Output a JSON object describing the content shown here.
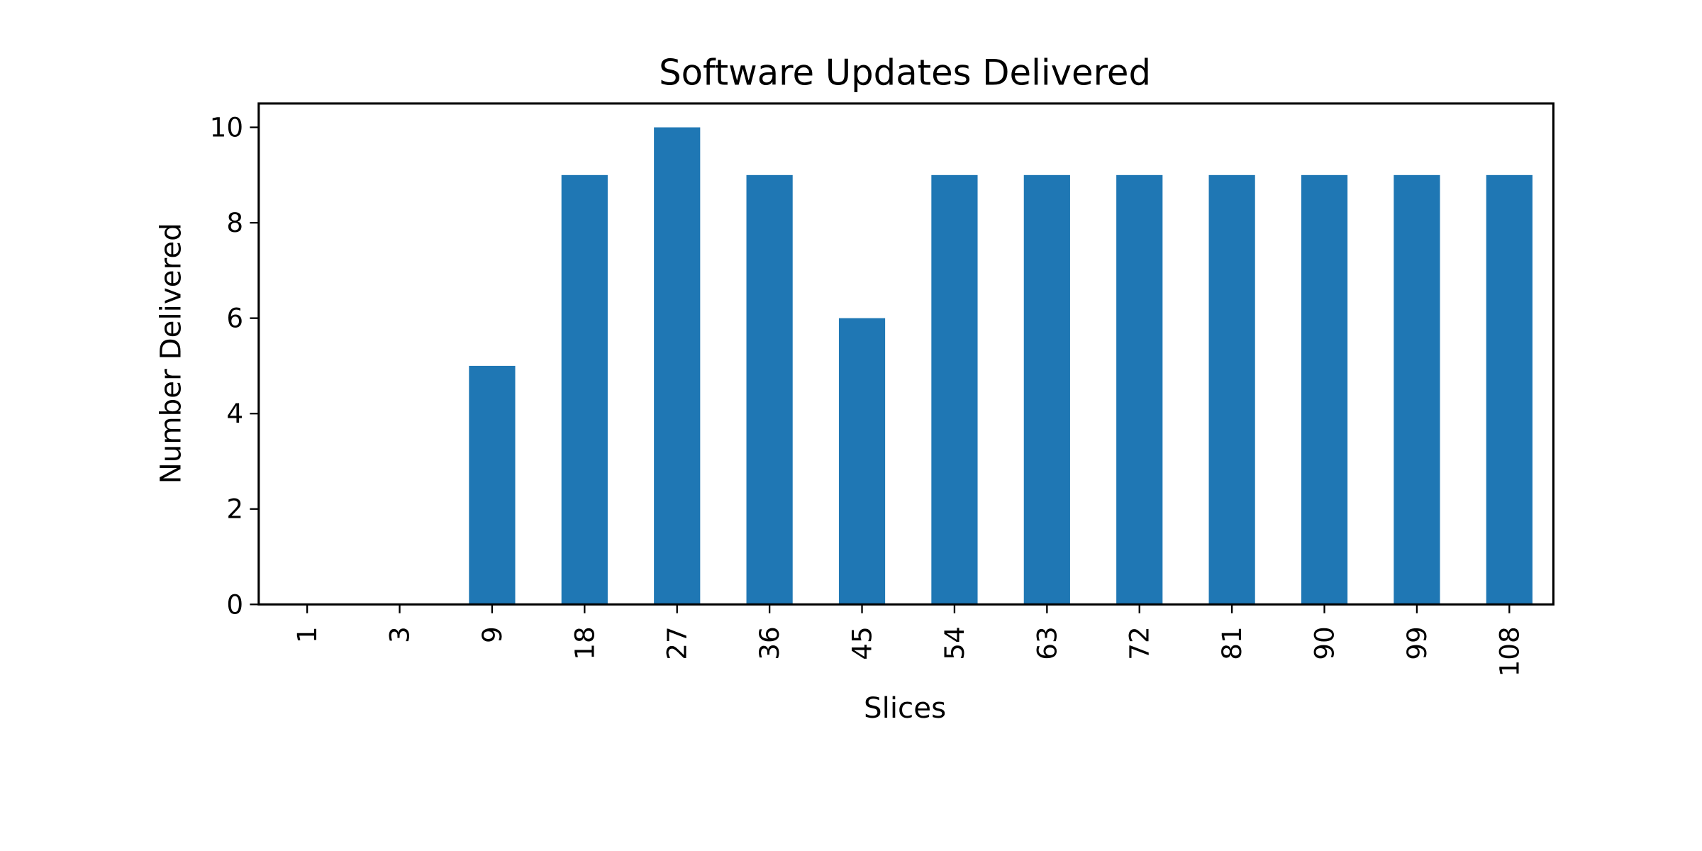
{
  "chart_data": {
    "type": "bar",
    "title": "Software Updates Delivered",
    "xlabel": "Slices",
    "ylabel": "Number Delivered",
    "categories": [
      "1",
      "3",
      "9",
      "18",
      "27",
      "36",
      "45",
      "54",
      "63",
      "72",
      "81",
      "90",
      "99",
      "108"
    ],
    "values": [
      0,
      0,
      5,
      9,
      10,
      9,
      6,
      9,
      9,
      9,
      9,
      9,
      9,
      9
    ],
    "ylim": [
      0,
      10.5
    ],
    "yticks": [
      0,
      2,
      4,
      6,
      8,
      10
    ],
    "grid": false,
    "legend": "none",
    "bar_color": "#1f77b4"
  }
}
